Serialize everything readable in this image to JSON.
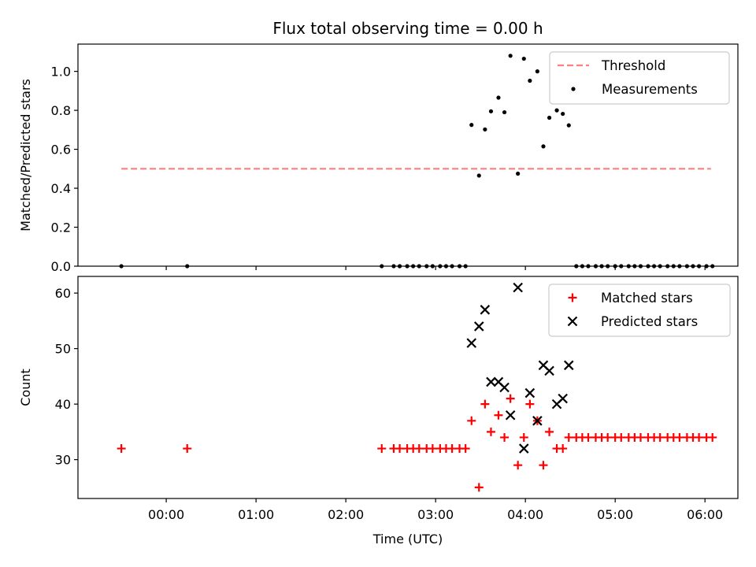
{
  "title": "Flux total observing time = 0.00 h",
  "xlabel": "Time (UTC)",
  "x_ticks": [
    "00:00",
    "01:00",
    "02:00",
    "03:00",
    "04:00",
    "05:00",
    "06:00"
  ],
  "chart_data": [
    {
      "type": "scatter",
      "title": "Flux total observing time = 0.00 h",
      "xlabel": "",
      "ylabel": "Matched/Predicted stars",
      "xlim": [
        "23:01",
        "06:22"
      ],
      "ylim": [
        0,
        1.14
      ],
      "y_ticks": [
        0.0,
        0.2,
        0.4,
        0.6,
        0.8,
        1.0
      ],
      "legend": "top-right",
      "series": [
        {
          "name": "Threshold",
          "kind": "line",
          "style": "dashed",
          "color": "#ff7f7f",
          "x": [
            "23:30",
            "06:04"
          ],
          "y": [
            0.5,
            0.5
          ]
        },
        {
          "name": "Measurements",
          "kind": "scatter",
          "marker": "dot",
          "color": "#000000",
          "x": [
            "23:30",
            "00:14",
            "02:24",
            "02:32",
            "02:36",
            "02:41",
            "02:45",
            "02:49",
            "02:54",
            "02:58",
            "03:03",
            "03:07",
            "03:11",
            "03:16",
            "03:20",
            "03:24",
            "03:29",
            "03:33",
            "03:37",
            "03:42",
            "03:46",
            "03:50",
            "03:55",
            "03:59",
            "04:03",
            "04:08",
            "04:12",
            "04:16",
            "04:21",
            "04:25",
            "04:29",
            "04:34",
            "04:38",
            "04:42",
            "04:47",
            "04:51",
            "04:55",
            "05:00",
            "05:04",
            "05:09",
            "05:13",
            "05:17",
            "05:22",
            "05:26",
            "05:30",
            "05:35",
            "05:39",
            "05:43",
            "05:48",
            "05:52",
            "05:56",
            "06:01",
            "06:05"
          ],
          "y": [
            0,
            0,
            0,
            0,
            0,
            0,
            0,
            0,
            0,
            0,
            0,
            0,
            0,
            0,
            0,
            0.725,
            0.465,
            0.702,
            0.795,
            0.865,
            0.79,
            1.08,
            0.475,
            1.065,
            0.952,
            1.0,
            0.615,
            0.762,
            0.8,
            0.782,
            0.723,
            0,
            0,
            0,
            0,
            0,
            0,
            0,
            0,
            0,
            0,
            0,
            0,
            0,
            0,
            0,
            0,
            0,
            0,
            0,
            0,
            0,
            0
          ]
        }
      ]
    },
    {
      "type": "scatter",
      "title": "",
      "xlabel": "Time (UTC)",
      "ylabel": "Count",
      "xlim": [
        "23:01",
        "06:22"
      ],
      "ylim": [
        23,
        63
      ],
      "y_ticks": [
        30,
        40,
        50,
        60
      ],
      "legend": "top-right",
      "series": [
        {
          "name": "Matched stars",
          "kind": "scatter",
          "marker": "plus",
          "color": "#ff0000",
          "x": [
            "23:30",
            "00:14",
            "02:24",
            "02:32",
            "02:36",
            "02:41",
            "02:45",
            "02:49",
            "02:54",
            "02:58",
            "03:03",
            "03:07",
            "03:11",
            "03:16",
            "03:20",
            "03:24",
            "03:29",
            "03:33",
            "03:37",
            "03:42",
            "03:46",
            "03:50",
            "03:55",
            "03:59",
            "04:03",
            "04:08",
            "04:12",
            "04:16",
            "04:21",
            "04:25",
            "04:29",
            "04:34",
            "04:38",
            "04:42",
            "04:47",
            "04:51",
            "04:55",
            "05:00",
            "05:04",
            "05:09",
            "05:13",
            "05:17",
            "05:22",
            "05:26",
            "05:30",
            "05:35",
            "05:39",
            "05:43",
            "05:48",
            "05:52",
            "05:56",
            "06:01",
            "06:05"
          ],
          "y": [
            32,
            32,
            32,
            32,
            32,
            32,
            32,
            32,
            32,
            32,
            32,
            32,
            32,
            32,
            32,
            37,
            25,
            40,
            35,
            38,
            34,
            41,
            29,
            34,
            40,
            37,
            29,
            35,
            32,
            32,
            34,
            34,
            34,
            34,
            34,
            34,
            34,
            34,
            34,
            34,
            34,
            34,
            34,
            34,
            34,
            34,
            34,
            34,
            34,
            34,
            34,
            34,
            34
          ]
        },
        {
          "name": "Predicted stars",
          "kind": "scatter",
          "marker": "x",
          "color": "#000000",
          "x": [
            "03:24",
            "03:29",
            "03:33",
            "03:37",
            "03:42",
            "03:46",
            "03:50",
            "03:55",
            "03:59",
            "04:03",
            "04:08",
            "04:12",
            "04:16",
            "04:21",
            "04:25",
            "04:29"
          ],
          "y": [
            51,
            54,
            57,
            44,
            44,
            43,
            38,
            61,
            32,
            42,
            37,
            47,
            46,
            40,
            41,
            47
          ]
        }
      ]
    }
  ]
}
